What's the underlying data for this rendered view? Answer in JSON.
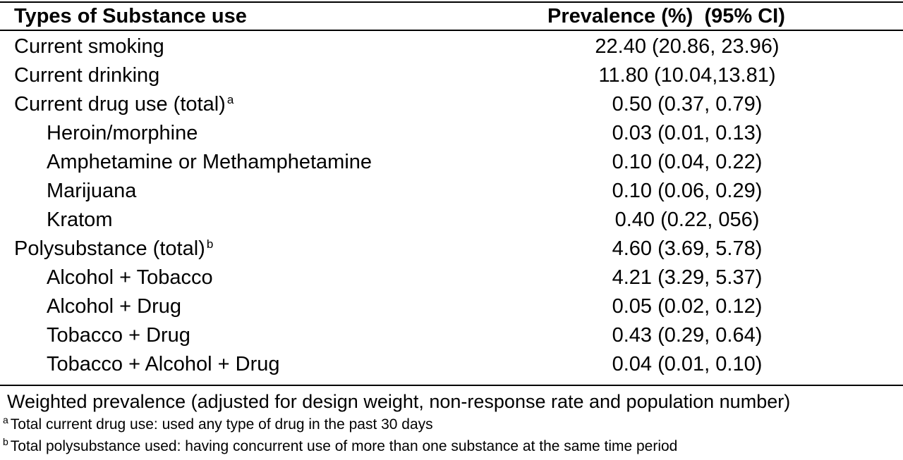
{
  "table": {
    "header": {
      "type_col": "Types of Substance use",
      "prevalence_col": "Prevalence (%)  (95% CI)"
    },
    "rows": [
      {
        "label": "Current smoking",
        "sup": "",
        "value": "22.40 (20.86, 23.96)",
        "indent": false
      },
      {
        "label": "Current drinking",
        "sup": "",
        "value": "11.80 (10.04,13.81)",
        "indent": false
      },
      {
        "label": "Current drug use (total)",
        "sup": "a",
        "value": "0.50 (0.37, 0.79)",
        "indent": false
      },
      {
        "label": "Heroin/morphine",
        "sup": "",
        "value": "0.03 (0.01, 0.13)",
        "indent": true
      },
      {
        "label": "Amphetamine or Methamphetamine",
        "sup": "",
        "value": "0.10 (0.04, 0.22)",
        "indent": true
      },
      {
        "label": "Marijuana",
        "sup": "",
        "value": "0.10 (0.06, 0.29)",
        "indent": true
      },
      {
        "label": "Kratom",
        "sup": "",
        "value": "0.40 (0.22, 056)",
        "indent": true
      },
      {
        "label": "Polysubstance (total)",
        "sup": "b",
        "value": "4.60 (3.69, 5.78)",
        "indent": false
      },
      {
        "label": "Alcohol + Tobacco",
        "sup": "",
        "value": "4.21 (3.29, 5.37)",
        "indent": true
      },
      {
        "label": "Alcohol + Drug",
        "sup": "",
        "value": "0.05 (0.02, 0.12)",
        "indent": true
      },
      {
        "label": "Tobacco + Drug",
        "sup": "",
        "value": "0.43 (0.29, 0.64)",
        "indent": true
      },
      {
        "label": "Tobacco + Alcohol + Drug",
        "sup": "",
        "value": "0.04 (0.01, 0.10)",
        "indent": true
      }
    ]
  },
  "notes": {
    "main": "Weighted prevalence (adjusted for design weight, non-response rate and population number)",
    "footnotes": [
      {
        "marker": "a",
        "text": "Total current drug use: used any type of drug  in the past 30 days"
      },
      {
        "marker": "b",
        "text": "Total polysubstance used:  having concurrent use of more than one substance at the same time period"
      }
    ]
  }
}
